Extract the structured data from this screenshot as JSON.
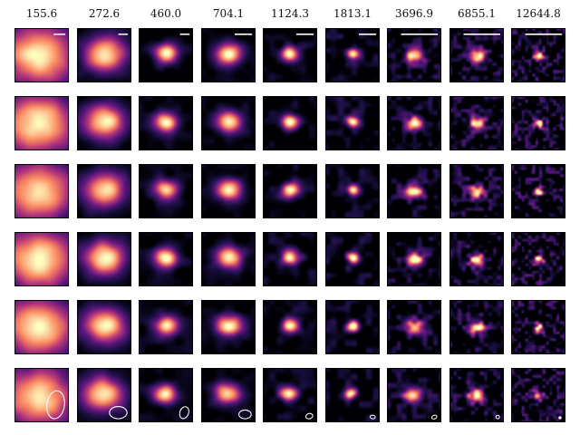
{
  "columns": [
    {
      "label": "155.6",
      "size": 28,
      "noise": 0.06,
      "scalebar": 0.22,
      "beam": [
        10,
        16,
        8
      ]
    },
    {
      "label": "272.6",
      "size": 16,
      "noise": 0.08,
      "scalebar": 0.18,
      "beam": [
        10,
        7,
        0
      ]
    },
    {
      "label": "460.0",
      "size": 9,
      "noise": 0.22,
      "scalebar": 0.18,
      "beam": [
        5,
        7,
        20
      ]
    },
    {
      "label": "704.1",
      "size": 10,
      "noise": 0.18,
      "scalebar": 0.33,
      "beam": [
        7,
        5,
        0
      ]
    },
    {
      "label": "1124.3",
      "size": 7,
      "noise": 0.32,
      "scalebar": 0.33,
      "beam": [
        4,
        3,
        -15
      ]
    },
    {
      "label": "1813.1",
      "size": 5,
      "noise": 0.42,
      "scalebar": 0.33,
      "beam": [
        3,
        2,
        10
      ]
    },
    {
      "label": "3696.9",
      "size": 7,
      "noise": 0.48,
      "scalebar": 0.7,
      "beam": [
        3,
        2,
        -20
      ]
    },
    {
      "label": "6855.1",
      "size": 6,
      "noise": 0.6,
      "scalebar": 0.7,
      "beam": [
        2,
        2,
        0
      ]
    },
    {
      "label": "12644.8",
      "size": 4,
      "noise": 0.75,
      "scalebar": 0.7,
      "beam": [
        1.2,
        1.2,
        0
      ]
    }
  ],
  "rows": [
    {
      "index": 1,
      "brightness": 1.0
    },
    {
      "index": 2,
      "brightness": 1.0
    },
    {
      "index": 3,
      "brightness": 0.95
    },
    {
      "index": 4,
      "brightness": 1.0
    },
    {
      "index": 5,
      "brightness": 1.0
    },
    {
      "index": 6,
      "brightness": 0.95
    }
  ],
  "colors": {
    "cmap_low": "#000004",
    "cmap_mid": "#b73779",
    "cmap_high": "#fcfdbf",
    "overlay": "#ffffff"
  }
}
